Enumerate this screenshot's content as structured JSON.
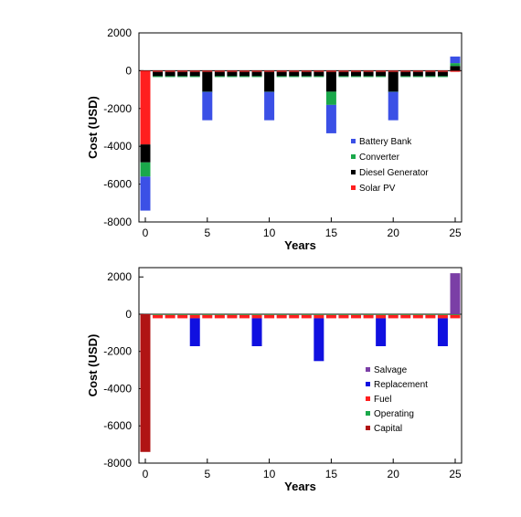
{
  "chart_data": [
    {
      "type": "bar",
      "stacked": true,
      "xlabel": "Years",
      "ylabel": "Cost (USD)",
      "ylim": [
        -8000,
        2000
      ],
      "yticks": [
        2000,
        0,
        -2000,
        -4000,
        -6000,
        -8000
      ],
      "xticks": [
        0,
        5,
        10,
        15,
        20,
        25
      ],
      "x": [
        0,
        1,
        2,
        3,
        4,
        5,
        6,
        7,
        8,
        9,
        10,
        11,
        12,
        13,
        14,
        15,
        16,
        17,
        18,
        19,
        20,
        21,
        22,
        23,
        24,
        25
      ],
      "legend_position": "bottom-right",
      "series": [
        {
          "name": "Solar PV",
          "color": "#ff1f1f",
          "values": [
            -3900,
            -60,
            -60,
            -60,
            -60,
            -60,
            -60,
            -60,
            -60,
            -60,
            -60,
            -60,
            -60,
            -60,
            -60,
            -60,
            -60,
            -60,
            -60,
            -60,
            -60,
            -60,
            -60,
            -60,
            -60,
            -60
          ]
        },
        {
          "name": "Diesel Generator",
          "color": "#000000",
          "values": [
            -950,
            -230,
            -230,
            -230,
            -230,
            -1050,
            -230,
            -230,
            -230,
            -230,
            -1050,
            -230,
            -230,
            -230,
            -230,
            -1050,
            -230,
            -230,
            -230,
            -230,
            -1050,
            -230,
            -230,
            -230,
            -230,
            250
          ]
        },
        {
          "name": "Converter",
          "color": "#1aa84a",
          "values": [
            -750,
            -10,
            -10,
            -10,
            -10,
            -10,
            -10,
            -10,
            -10,
            -10,
            -10,
            -10,
            -10,
            -10,
            -10,
            -700,
            -10,
            -10,
            -10,
            -10,
            -10,
            -10,
            -10,
            -10,
            -10,
            150
          ]
        },
        {
          "name": "Battery Bank",
          "color": "#3b50e6",
          "values": [
            -1800,
            0,
            0,
            0,
            0,
            -1500,
            0,
            0,
            0,
            0,
            -1500,
            0,
            0,
            0,
            0,
            -1500,
            0,
            0,
            0,
            0,
            -1500,
            0,
            0,
            0,
            0,
            350
          ]
        }
      ]
    },
    {
      "type": "bar",
      "stacked": true,
      "xlabel": "Years",
      "ylabel": "Cost (USD)",
      "ylim": [
        -8000,
        2500
      ],
      "yticks": [
        2000,
        0,
        -2000,
        -4000,
        -6000,
        -8000
      ],
      "xticks": [
        0,
        5,
        10,
        15,
        20,
        25
      ],
      "x": [
        0,
        1,
        2,
        3,
        4,
        5,
        6,
        7,
        8,
        9,
        10,
        11,
        12,
        13,
        14,
        15,
        16,
        17,
        18,
        19,
        20,
        21,
        22,
        23,
        24,
        25
      ],
      "legend_position": "bottom-right",
      "series": [
        {
          "name": "Capital",
          "color": "#b01414",
          "values": [
            -7400,
            0,
            0,
            0,
            0,
            0,
            0,
            0,
            0,
            0,
            0,
            0,
            0,
            0,
            0,
            0,
            0,
            0,
            0,
            0,
            0,
            0,
            0,
            0,
            0,
            0
          ]
        },
        {
          "name": "Operating",
          "color": "#1aa84a",
          "values": [
            0,
            -40,
            -40,
            -40,
            -40,
            -40,
            -40,
            -40,
            -40,
            -40,
            -40,
            -40,
            -40,
            -40,
            -40,
            -40,
            -40,
            -40,
            -40,
            -40,
            -40,
            -40,
            -40,
            -40,
            -40,
            -40
          ]
        },
        {
          "name": "Fuel",
          "color": "#ff1f1f",
          "values": [
            0,
            -180,
            -180,
            -180,
            -180,
            -180,
            -180,
            -180,
            -180,
            -180,
            -180,
            -180,
            -180,
            -180,
            -180,
            -180,
            -180,
            -180,
            -180,
            -180,
            -180,
            -180,
            -180,
            -180,
            -180,
            -180
          ]
        },
        {
          "name": "Replacement",
          "color": "#1010e0",
          "values": [
            0,
            0,
            0,
            0,
            -1500,
            0,
            0,
            0,
            0,
            -1500,
            0,
            0,
            0,
            0,
            -2300,
            0,
            0,
            0,
            0,
            -1500,
            0,
            0,
            0,
            0,
            -1500,
            0
          ]
        },
        {
          "name": "Salvage",
          "color": "#7b3fa6",
          "values": [
            0,
            0,
            0,
            0,
            0,
            0,
            0,
            0,
            0,
            0,
            0,
            0,
            0,
            0,
            0,
            0,
            0,
            0,
            0,
            0,
            0,
            0,
            0,
            0,
            0,
            2200
          ]
        }
      ]
    }
  ]
}
